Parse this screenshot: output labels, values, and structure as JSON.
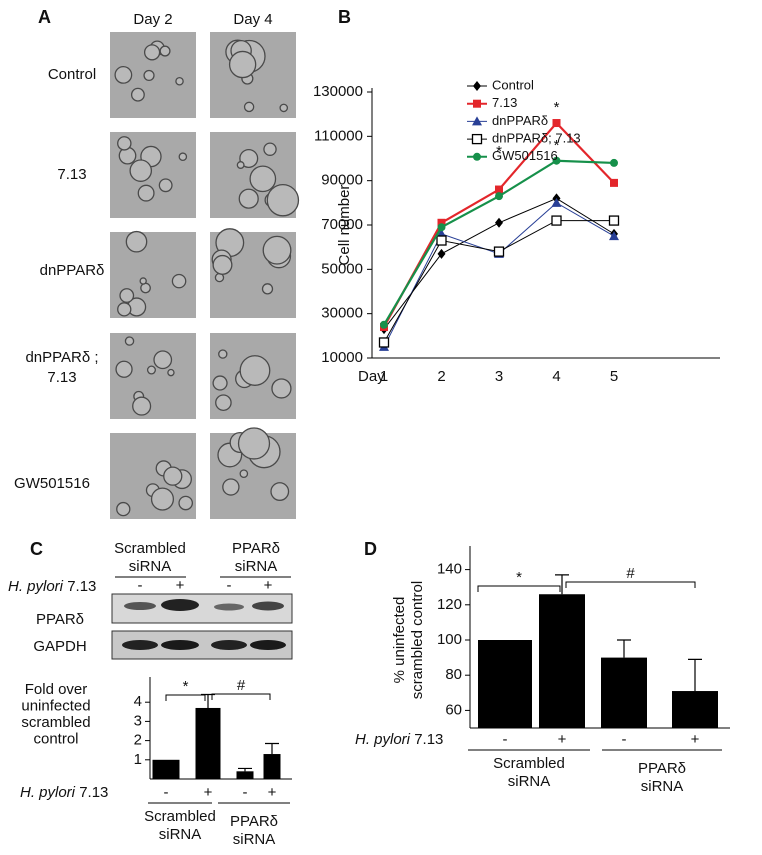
{
  "panel_labels": [
    "A",
    "B",
    "C",
    "D"
  ],
  "panel_a": {
    "columns": [
      "Day 2",
      "Day 4"
    ],
    "rows": [
      [
        "Control"
      ],
      [
        "7.13"
      ],
      [
        "dnPPARδ"
      ],
      [
        "dnPPARδ ;",
        "7.13"
      ],
      [
        "GW501516"
      ]
    ]
  },
  "blot": {
    "groups": [
      [
        "Scrambled",
        "siRNA"
      ],
      [
        "PPARδ",
        "siRNA"
      ]
    ],
    "treatment_organism": "H. pylori",
    "treatment_strain": "7.13",
    "lanes": [
      "-",
      "+",
      "-",
      "+"
    ],
    "bands": [
      "PPARδ",
      "GAPDH"
    ]
  },
  "chart_data": [
    {
      "type": "line",
      "categories": [
        "1",
        "2",
        "3",
        "4",
        "5"
      ],
      "x_label": "Day",
      "y_label": "Cell number",
      "ylim": [
        10000,
        130000
      ],
      "yticks": [
        10000,
        30000,
        50000,
        70000,
        90000,
        110000,
        130000
      ],
      "annotations": [
        "*",
        "*",
        "*"
      ],
      "series": [
        {
          "name": "Control",
          "color": "#000000",
          "marker": "diamond",
          "values": [
            23000,
            57000,
            71000,
            82000,
            66000
          ]
        },
        {
          "name": "7.13",
          "color": "#e3262b",
          "marker": "square",
          "values": [
            24000,
            71000,
            86000,
            116000,
            89000
          ]
        },
        {
          "name": "dnPPARδ",
          "color": "#283f96",
          "marker": "triangle",
          "values": [
            15000,
            66000,
            57000,
            80000,
            65000
          ]
        },
        {
          "name": "dnPPARδ; 7.13",
          "color": "#000000",
          "marker": "open-square",
          "values": [
            17000,
            63000,
            58000,
            72000,
            72000
          ]
        },
        {
          "name": "GW501516",
          "color": "#16904a",
          "marker": "circle",
          "values": [
            25000,
            69000,
            83000,
            99000,
            98000
          ]
        }
      ]
    },
    {
      "type": "bar",
      "categories": [
        "-",
        "+",
        "-",
        "+"
      ],
      "groups": [
        [
          "Scrambled",
          "siRNA"
        ],
        [
          "PPARδ",
          "siRNA"
        ]
      ],
      "x_label_organism": "H. pylori",
      "x_label_strain": "7.13",
      "y_label": [
        "Fold over",
        "uninfected",
        "scrambled",
        "control"
      ],
      "values": [
        1,
        3.7,
        0.4,
        1.3
      ],
      "errors": [
        null,
        0.7,
        0.15,
        0.55
      ],
      "color": "#000000",
      "ylim": [
        0,
        5
      ],
      "yticks": [
        1,
        2,
        3,
        4
      ],
      "annotations": [
        "*",
        "#"
      ]
    },
    {
      "type": "bar",
      "categories": [
        "-",
        "+",
        "-",
        "+"
      ],
      "groups": [
        [
          "Scrambled",
          "siRNA"
        ],
        [
          "PPARδ",
          "siRNA"
        ]
      ],
      "x_label_organism": "H. pylori",
      "x_label_strain": "7.13",
      "y_label": [
        "% uninfected",
        "scrambled control"
      ],
      "values": [
        100,
        126,
        90,
        71
      ],
      "errors": [
        null,
        11,
        10,
        18
      ],
      "color": "#000000",
      "ylim": [
        50,
        150
      ],
      "yticks": [
        60,
        80,
        100,
        120,
        140
      ],
      "annotations": [
        "*",
        "#"
      ]
    }
  ]
}
